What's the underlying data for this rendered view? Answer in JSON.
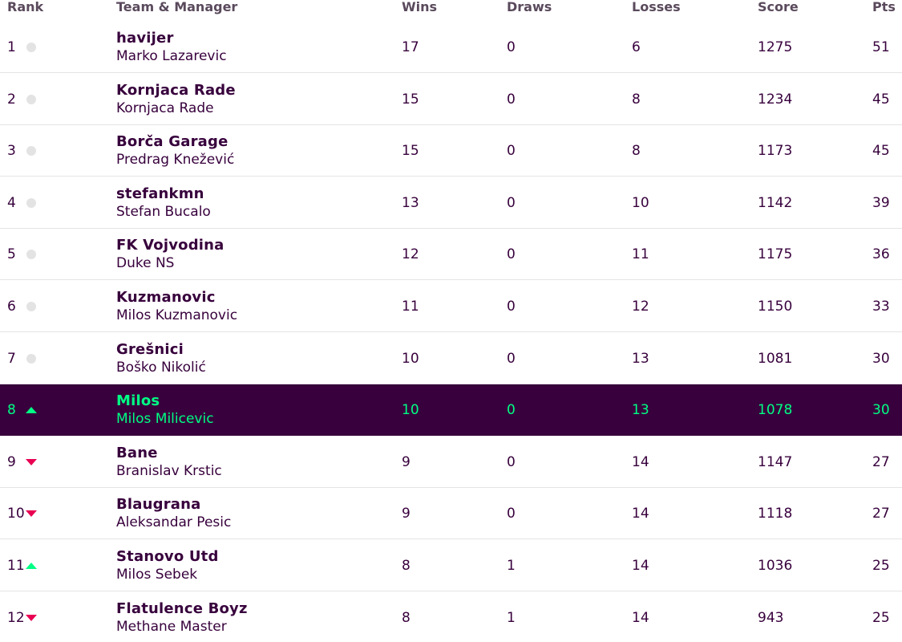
{
  "headers": {
    "rank": "Rank",
    "team": "Team & Manager",
    "wins": "Wins",
    "draws": "Draws",
    "losses": "Losses",
    "score": "Score",
    "pts": "Pts"
  },
  "colors": {
    "brand_purple": "#37003c",
    "highlight_bg": "#38003c",
    "highlight_text": "#00ff85",
    "up_arrow": "#00ff85",
    "down_arrow": "#e90052",
    "neutral_dot": "#e3e3e3"
  },
  "rows": [
    {
      "rank": "1",
      "movement": "none",
      "team": "havijer",
      "manager": "Marko Lazarevic",
      "wins": "17",
      "draws": "0",
      "losses": "6",
      "score": "1275",
      "pts": "51"
    },
    {
      "rank": "2",
      "movement": "none",
      "team": "Kornjaca Rade",
      "manager": "Kornjaca Rade",
      "wins": "15",
      "draws": "0",
      "losses": "8",
      "score": "1234",
      "pts": "45"
    },
    {
      "rank": "3",
      "movement": "none",
      "team": "Borča Garage",
      "manager": "Predrag Knežević",
      "wins": "15",
      "draws": "0",
      "losses": "8",
      "score": "1173",
      "pts": "45"
    },
    {
      "rank": "4",
      "movement": "none",
      "team": "stefankmn",
      "manager": "Stefan Bucalo",
      "wins": "13",
      "draws": "0",
      "losses": "10",
      "score": "1142",
      "pts": "39"
    },
    {
      "rank": "5",
      "movement": "none",
      "team": "FK Vojvodina",
      "manager": "Duke NS",
      "wins": "12",
      "draws": "0",
      "losses": "11",
      "score": "1175",
      "pts": "36"
    },
    {
      "rank": "6",
      "movement": "none",
      "team": "Kuzmanovic",
      "manager": "Milos Kuzmanovic",
      "wins": "11",
      "draws": "0",
      "losses": "12",
      "score": "1150",
      "pts": "33"
    },
    {
      "rank": "7",
      "movement": "none",
      "team": "Grešnici",
      "manager": "Boško Nikolić",
      "wins": "10",
      "draws": "0",
      "losses": "13",
      "score": "1081",
      "pts": "30"
    },
    {
      "rank": "8",
      "movement": "up",
      "team": "Milos",
      "manager": "Milos Milicevic",
      "wins": "10",
      "draws": "0",
      "losses": "13",
      "score": "1078",
      "pts": "30",
      "highlighted": true
    },
    {
      "rank": "9",
      "movement": "down",
      "team": "Bane",
      "manager": "Branislav Krstic",
      "wins": "9",
      "draws": "0",
      "losses": "14",
      "score": "1147",
      "pts": "27"
    },
    {
      "rank": "10",
      "movement": "down",
      "team": "Blaugrana",
      "manager": "Aleksandar Pesic",
      "wins": "9",
      "draws": "0",
      "losses": "14",
      "score": "1118",
      "pts": "27"
    },
    {
      "rank": "11",
      "movement": "up",
      "team": "Stanovo Utd",
      "manager": "Milos Sebek",
      "wins": "8",
      "draws": "1",
      "losses": "14",
      "score": "1036",
      "pts": "25"
    },
    {
      "rank": "12",
      "movement": "down",
      "team": "Flatulence Boyz",
      "manager": "Methane Master",
      "wins": "8",
      "draws": "1",
      "losses": "14",
      "score": "943",
      "pts": "25"
    }
  ]
}
